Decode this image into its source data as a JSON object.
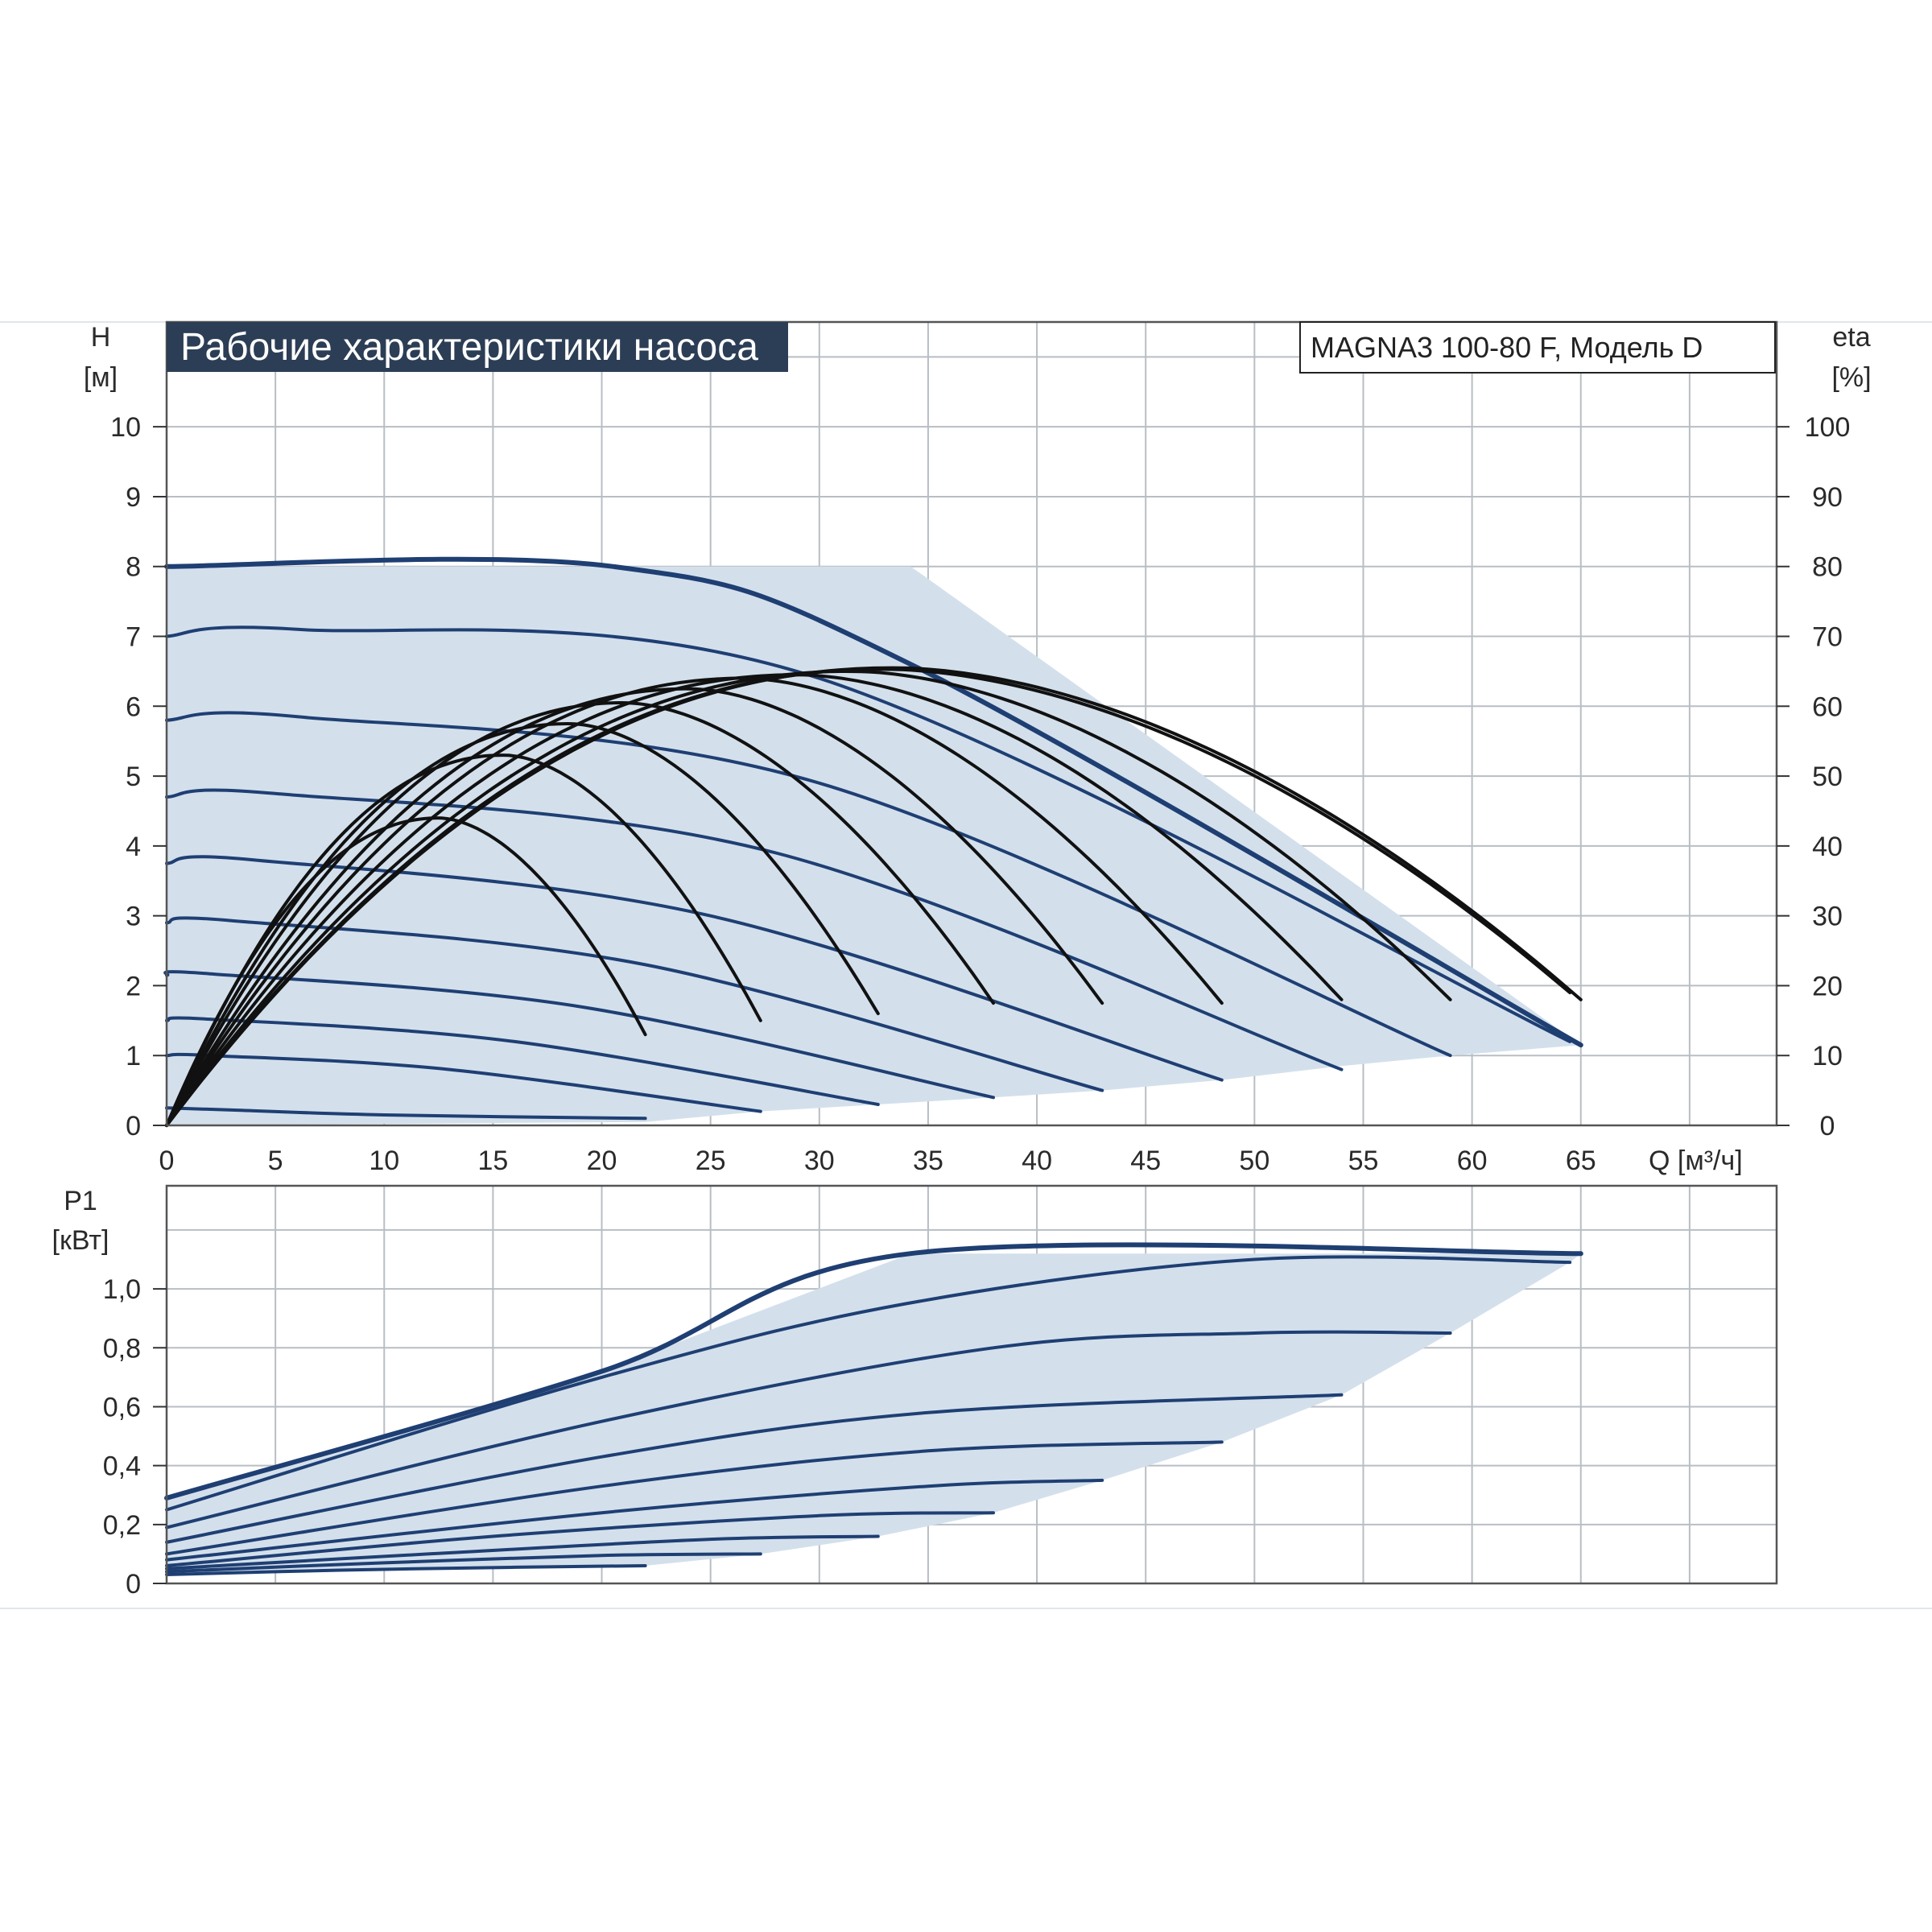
{
  "chart_data": [
    {
      "type": "line",
      "title": "Рабочие характеристики насоса",
      "model": "MAGNA3 100-80 F, Модель D",
      "xlabel": "Q [м³/ч]",
      "ylabel": "H",
      "ylabel_unit": "[м]",
      "y2label": "eta",
      "y2label_unit": "[%]",
      "xlim": [
        0,
        74
      ],
      "ylim": [
        0,
        11.5
      ],
      "y2lim": [
        0,
        115
      ],
      "xticks": [
        0,
        5,
        10,
        15,
        20,
        25,
        30,
        35,
        40,
        45,
        50,
        55,
        60,
        65
      ],
      "xtick_labels": [
        "0",
        "5",
        "10",
        "15",
        "20",
        "25",
        "30",
        "35",
        "40",
        "45",
        "50",
        "55",
        "60",
        "65"
      ],
      "yticks": [
        0,
        1,
        2,
        3,
        4,
        5,
        6,
        7,
        8,
        9,
        10
      ],
      "ytick_labels": [
        "0",
        "1",
        "2",
        "3",
        "4",
        "5",
        "6",
        "7",
        "8",
        "9",
        "10"
      ],
      "y2ticks": [
        0,
        10,
        20,
        30,
        40,
        50,
        60,
        70,
        80,
        90,
        100
      ],
      "y2tick_labels": [
        "0",
        "10",
        "20",
        "30",
        "40",
        "50",
        "60",
        "70",
        "80",
        "90",
        "100"
      ],
      "grid": true,
      "colors": {
        "curve": "#1f3f73",
        "eta": "#111111",
        "fill": "#d3e0ec",
        "grid": "#b8bec4",
        "title_bg": "#2c3e55"
      },
      "envelope": [
        [
          0,
          8
        ],
        [
          34.2,
          8
        ],
        [
          65,
          1.15
        ],
        [
          59,
          1.0
        ],
        [
          54,
          0.85
        ],
        [
          48.5,
          0.65
        ],
        [
          43,
          0.5
        ],
        [
          38,
          0.4
        ],
        [
          32.7,
          0.3
        ],
        [
          27.3,
          0.2
        ],
        [
          22,
          0.05
        ],
        [
          0,
          0
        ]
      ],
      "head_curves": [
        {
          "points": [
            [
              0,
              8
            ],
            [
              20.5,
              8
            ],
            [
              34.2,
              6.6
            ],
            [
              65,
              1.15
            ]
          ]
        },
        {
          "points": [
            [
              0,
              7.0
            ],
            [
              6,
              7.1
            ],
            [
              30,
              6.4
            ],
            [
              64.5,
              1.2
            ]
          ]
        },
        {
          "points": [
            [
              0,
              5.8
            ],
            [
              6,
              5.85
            ],
            [
              30,
              4.9
            ],
            [
              59,
              1.0
            ]
          ]
        },
        {
          "points": [
            [
              0,
              4.7
            ],
            [
              5,
              4.75
            ],
            [
              28,
              3.9
            ],
            [
              54,
              0.8
            ]
          ]
        },
        {
          "points": [
            [
              0,
              3.75
            ],
            [
              4,
              3.8
            ],
            [
              25,
              3.0
            ],
            [
              48.5,
              0.65
            ]
          ]
        },
        {
          "points": [
            [
              0,
              2.9
            ],
            [
              3,
              2.93
            ],
            [
              22,
              2.3
            ],
            [
              43,
              0.5
            ]
          ]
        },
        {
          "points": [
            [
              0,
              2.15
            ],
            [
              2,
              2.17
            ],
            [
              19,
              1.7
            ],
            [
              38,
              0.4
            ]
          ]
        },
        {
          "points": [
            [
              0,
              1.5
            ],
            [
              2,
              1.52
            ],
            [
              16,
              1.2
            ],
            [
              32.7,
              0.3
            ]
          ]
        },
        {
          "points": [
            [
              0,
              1.0
            ],
            [
              2,
              1.0
            ],
            [
              13,
              0.8
            ],
            [
              27.3,
              0.2
            ]
          ]
        },
        {
          "points": [
            [
              0,
              0.25
            ],
            [
              3,
              0.22
            ],
            [
              10,
              0.15
            ],
            [
              22,
              0.1
            ]
          ]
        }
      ],
      "eta_curves": [
        {
          "peak_x": 12.5,
          "peak": 44,
          "end_x": 22,
          "end": 13
        },
        {
          "peak_x": 15.5,
          "peak": 53,
          "end_x": 27.3,
          "end": 15
        },
        {
          "peak_x": 18.5,
          "peak": 57.5,
          "end_x": 32.7,
          "end": 16
        },
        {
          "peak_x": 21,
          "peak": 60.5,
          "end_x": 38,
          "end": 17.5
        },
        {
          "peak_x": 24,
          "peak": 62.5,
          "end_x": 43,
          "end": 17.5
        },
        {
          "peak_x": 26.5,
          "peak": 64,
          "end_x": 48.5,
          "end": 17.5
        },
        {
          "peak_x": 29,
          "peak": 64.5,
          "end_x": 54,
          "end": 18
        },
        {
          "peak_x": 31.5,
          "peak": 65,
          "end_x": 59,
          "end": 18
        },
        {
          "peak_x": 33,
          "peak": 65.3,
          "end_x": 64.5,
          "end": 19
        },
        {
          "peak_x": 33.5,
          "peak": 65.5,
          "end_x": 65,
          "end": 18
        }
      ]
    },
    {
      "type": "line",
      "xlabel": "",
      "ylabel": "P1",
      "ylabel_unit": "[кВт]",
      "xlim": [
        0,
        74
      ],
      "ylim": [
        0,
        1.35
      ],
      "xticks": [
        0,
        5,
        10,
        15,
        20,
        25,
        30,
        35,
        40,
        45,
        50,
        55,
        60,
        65
      ],
      "yticks": [
        0,
        0.2,
        0.4,
        0.6,
        0.8,
        1.0
      ],
      "ytick_labels": [
        "0",
        "0,2",
        "0,4",
        "0,6",
        "0,8",
        "1,0"
      ],
      "grid": true,
      "envelope": [
        [
          0,
          0.29
        ],
        [
          20,
          0.72
        ],
        [
          34.2,
          1.12
        ],
        [
          65,
          1.12
        ],
        [
          64.5,
          1.09
        ],
        [
          59,
          0.85
        ],
        [
          54,
          0.64
        ],
        [
          48.5,
          0.48
        ],
        [
          43,
          0.35
        ],
        [
          38,
          0.24
        ],
        [
          32.7,
          0.16
        ],
        [
          27.3,
          0.1
        ],
        [
          22,
          0.06
        ],
        [
          0,
          0.03
        ]
      ],
      "power_curves": [
        {
          "points": [
            [
              0,
              0.29
            ],
            [
              20,
              0.72
            ],
            [
              34.2,
              1.12
            ],
            [
              65,
              1.12
            ]
          ]
        },
        {
          "points": [
            [
              0,
              0.25
            ],
            [
              20,
              0.7
            ],
            [
              34,
              0.95
            ],
            [
              50,
              1.1
            ],
            [
              64.5,
              1.09
            ]
          ]
        },
        {
          "points": [
            [
              0,
              0.19
            ],
            [
              20,
              0.55
            ],
            [
              38,
              0.8
            ],
            [
              50,
              0.85
            ],
            [
              59,
              0.85
            ]
          ]
        },
        {
          "points": [
            [
              0,
              0.14
            ],
            [
              20,
              0.43
            ],
            [
              35,
              0.58
            ],
            [
              54,
              0.64
            ]
          ]
        },
        {
          "points": [
            [
              0,
              0.1
            ],
            [
              20,
              0.33
            ],
            [
              35,
              0.45
            ],
            [
              48.5,
              0.48
            ]
          ]
        },
        {
          "points": [
            [
              0,
              0.08
            ],
            [
              20,
              0.24
            ],
            [
              35,
              0.33
            ],
            [
              43,
              0.35
            ]
          ]
        },
        {
          "points": [
            [
              0,
              0.06
            ],
            [
              15,
              0.16
            ],
            [
              30,
              0.23
            ],
            [
              38,
              0.24
            ]
          ]
        },
        {
          "points": [
            [
              0,
              0.05
            ],
            [
              12,
              0.1
            ],
            [
              25,
              0.15
            ],
            [
              32.7,
              0.16
            ]
          ]
        },
        {
          "points": [
            [
              0,
              0.04
            ],
            [
              10,
              0.07
            ],
            [
              20,
              0.095
            ],
            [
              27.3,
              0.1
            ]
          ]
        },
        {
          "points": [
            [
              0,
              0.03
            ],
            [
              8,
              0.045
            ],
            [
              16,
              0.055
            ],
            [
              22,
              0.06
            ]
          ]
        }
      ]
    }
  ]
}
